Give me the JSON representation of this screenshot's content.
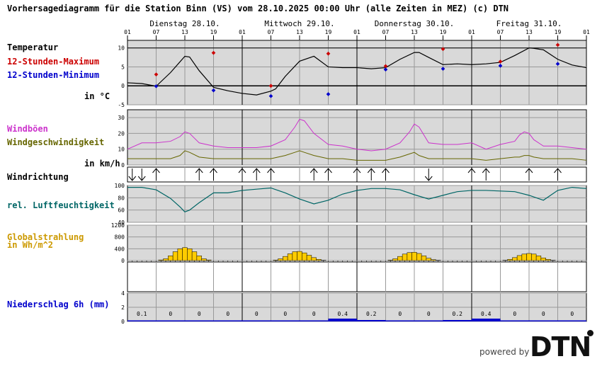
{
  "header": "Vorhersagediagramm für die Station Binn (VS) vom 28.10.2025 00:00 Uhr (alle Zeiten in MEZ)   (c) DTN",
  "days": [
    "Dienstag 28.10.",
    "Mittwoch 29.10.",
    "Donnerstag 30.10.",
    "Freitag 31.10."
  ],
  "hour_ticks": [
    "01",
    "07",
    "13",
    "19",
    "01",
    "07",
    "13",
    "19",
    "01",
    "07",
    "13",
    "19",
    "01",
    "07",
    "13",
    "19",
    "01"
  ],
  "labels": {
    "temperature": "Temperatur",
    "max12": "12-Stunden-Maximum",
    "min12": "12-Stunden-Minimum",
    "temp_unit": "in °C",
    "gusts": "Windböen",
    "windspeed": "Windgeschwindigkeit",
    "wind_unit": "in km/h",
    "winddir": "Windrichtung",
    "humidity": "rel. Luftfeuchtigkeit",
    "radiation": "Globalstrahlung",
    "radiation_unit": "in Wh/m^2",
    "precip": "Niederschlag 6h (mm)"
  },
  "footer": {
    "powered": "powered by",
    "logo": "DTN"
  },
  "colors": {
    "temperature": "#000000",
    "max": "#cc0000",
    "min": "#0000cc",
    "gusts": "#cc33cc",
    "windspeed": "#666600",
    "humidity": "#006666",
    "radiation": "#cc9900",
    "radiation_fill": "#ffcc00",
    "precip": "#0000cc",
    "panel_bg": "#d9d9d9"
  },
  "chart_data": {
    "type": "line",
    "x_unit": "hours from 28.10. 01:00",
    "temperature": {
      "ylim": [
        -5,
        12
      ],
      "ticks": [
        10,
        5,
        0,
        -5
      ],
      "x": [
        0,
        3,
        6,
        9,
        12,
        13,
        15,
        18,
        21,
        24,
        27,
        30,
        31,
        33,
        36,
        39,
        42,
        45,
        48,
        51,
        54,
        57,
        60,
        61,
        63,
        66,
        69,
        72,
        75,
        78,
        81,
        84,
        85,
        87,
        90,
        93,
        96
      ],
      "y": [
        0.8,
        0.6,
        -0.1,
        3.5,
        7.8,
        7.6,
        4.0,
        -0.4,
        -1.3,
        -2.0,
        -2.4,
        -1.4,
        -0.8,
        2.5,
        6.5,
        7.8,
        5.0,
        4.8,
        4.8,
        4.5,
        4.8,
        7.0,
        8.8,
        8.8,
        7.5,
        5.6,
        5.8,
        5.6,
        5.8,
        6.2,
        8.0,
        10.0,
        9.9,
        9.5,
        7.0,
        5.5,
        4.8
      ],
      "max12": [
        {
          "x": 6,
          "y": 3.0
        },
        {
          "x": 18,
          "y": 8.7
        },
        {
          "x": 30,
          "y": 0.0
        },
        {
          "x": 42,
          "y": 8.5
        },
        {
          "x": 54,
          "y": 5.2
        },
        {
          "x": 66,
          "y": 9.7
        },
        {
          "x": 78,
          "y": 6.4
        },
        {
          "x": 90,
          "y": 10.8
        }
      ],
      "min12": [
        {
          "x": 6,
          "y": -0.1
        },
        {
          "x": 18,
          "y": -1.2
        },
        {
          "x": 30,
          "y": -2.7
        },
        {
          "x": 42,
          "y": -2.2
        },
        {
          "x": 54,
          "y": 4.3
        },
        {
          "x": 66,
          "y": 4.5
        },
        {
          "x": 78,
          "y": 5.3
        },
        {
          "x": 90,
          "y": 5.8
        }
      ]
    },
    "wind": {
      "ylim": [
        0,
        35
      ],
      "ticks": [
        30,
        20,
        10,
        0
      ],
      "x": [
        0,
        3,
        6,
        9,
        11,
        12,
        13,
        15,
        18,
        21,
        24,
        27,
        30,
        33,
        35,
        36,
        37,
        39,
        42,
        45,
        48,
        51,
        54,
        57,
        59,
        60,
        61,
        63,
        66,
        69,
        72,
        75,
        78,
        81,
        82,
        83,
        84,
        85,
        87,
        90,
        93,
        96
      ],
      "gusts": [
        10,
        14,
        14,
        15,
        18,
        21,
        20,
        14,
        12,
        11,
        11,
        11,
        12,
        16,
        24,
        29,
        28,
        20,
        13,
        12,
        10,
        9,
        10,
        14,
        21,
        26,
        24,
        14,
        13,
        13,
        14,
        10,
        13,
        15,
        19,
        21,
        20,
        16,
        12,
        12,
        11,
        10
      ],
      "speed": [
        4,
        4,
        4,
        4,
        6,
        9,
        8,
        5,
        4,
        4,
        4,
        4,
        4,
        6,
        8,
        9,
        8,
        6,
        4,
        4,
        3,
        3,
        3,
        5,
        7,
        8,
        6,
        4,
        4,
        4,
        4,
        3,
        4,
        5,
        5,
        6,
        6,
        5,
        4,
        4,
        4,
        3
      ]
    },
    "wind_direction": {
      "x": [
        1,
        3,
        6,
        15,
        18,
        24,
        27,
        30,
        39,
        42,
        48,
        51,
        54,
        63,
        72,
        75,
        84,
        90
      ],
      "dir": [
        "S",
        "S",
        "N",
        "N",
        "N",
        "N",
        "N",
        "N",
        "N",
        "N",
        "N",
        "N",
        "N",
        "S",
        "N",
        "N",
        "N",
        "N"
      ]
    },
    "humidity": {
      "ylim": [
        40,
        100
      ],
      "ticks": [
        100,
        80,
        60,
        40
      ],
      "x": [
        0,
        3,
        6,
        9,
        11,
        12,
        13,
        15,
        18,
        21,
        24,
        27,
        30,
        33,
        36,
        39,
        42,
        45,
        48,
        51,
        54,
        57,
        60,
        63,
        66,
        69,
        72,
        75,
        78,
        81,
        84,
        87,
        90,
        93,
        96
      ],
      "y": [
        97,
        97,
        93,
        79,
        65,
        57,
        60,
        72,
        88,
        88,
        92,
        94,
        96,
        88,
        78,
        70,
        76,
        86,
        92,
        95,
        95,
        93,
        85,
        78,
        84,
        90,
        92,
        92,
        91,
        90,
        84,
        76,
        92,
        97,
        95
      ]
    },
    "radiation": {
      "ylim": [
        0,
        1200
      ],
      "ticks": [
        1200,
        800,
        400,
        0
      ],
      "x": [
        7,
        8,
        9,
        10,
        11,
        12,
        13,
        14,
        15,
        16,
        17,
        31,
        32,
        33,
        34,
        35,
        36,
        37,
        38,
        39,
        40,
        41,
        55,
        56,
        57,
        58,
        59,
        60,
        61,
        62,
        63,
        64,
        65,
        79,
        80,
        81,
        82,
        83,
        84,
        85,
        86,
        87,
        88,
        89
      ],
      "y": [
        20,
        60,
        160,
        300,
        400,
        440,
        400,
        300,
        160,
        60,
        20,
        15,
        60,
        140,
        230,
        300,
        310,
        260,
        180,
        100,
        40,
        10,
        15,
        60,
        140,
        220,
        270,
        280,
        240,
        160,
        80,
        30,
        10,
        10,
        40,
        100,
        170,
        220,
        240,
        220,
        160,
        90,
        40,
        10
      ]
    },
    "precipitation": {
      "ylim": [
        0,
        4
      ],
      "ticks": [
        4,
        2,
        0
      ],
      "blocks": [
        {
          "label": "0.1",
          "value": 0.1
        },
        {
          "label": "0",
          "value": 0
        },
        {
          "label": "0",
          "value": 0
        },
        {
          "label": "0",
          "value": 0
        },
        {
          "label": "0",
          "value": 0
        },
        {
          "label": "0",
          "value": 0
        },
        {
          "label": "0",
          "value": 0
        },
        {
          "label": "0.4",
          "value": 0.4
        },
        {
          "label": "0.2",
          "value": 0.2
        },
        {
          "label": "0",
          "value": 0
        },
        {
          "label": "0",
          "value": 0
        },
        {
          "label": "0.2",
          "value": 0.2
        },
        {
          "label": "0.4",
          "value": 0.4
        },
        {
          "label": "0",
          "value": 0
        },
        {
          "label": "0",
          "value": 0
        },
        {
          "label": "0",
          "value": 0
        }
      ]
    }
  }
}
